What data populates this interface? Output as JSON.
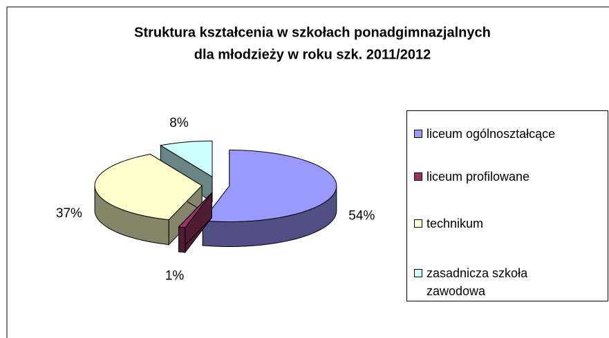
{
  "chart_data": {
    "type": "pie3d",
    "title": [
      "Struktura kształcenia w szkołach ponadgimnazjalnych",
      "dla młodzieży w roku szk. 2011/2012"
    ],
    "categories": [
      "liceum ogólnoształcące",
      "liceum profilowane",
      "technikum",
      "zasadnicza szkoła zawodowa"
    ],
    "values": [
      54,
      1,
      37,
      8
    ],
    "value_labels": [
      "54%",
      "1%",
      "37%",
      "8%"
    ],
    "colors": [
      "#9999ff",
      "#993366",
      "#ffffcc",
      "#ccffff"
    ],
    "legend": "right"
  }
}
